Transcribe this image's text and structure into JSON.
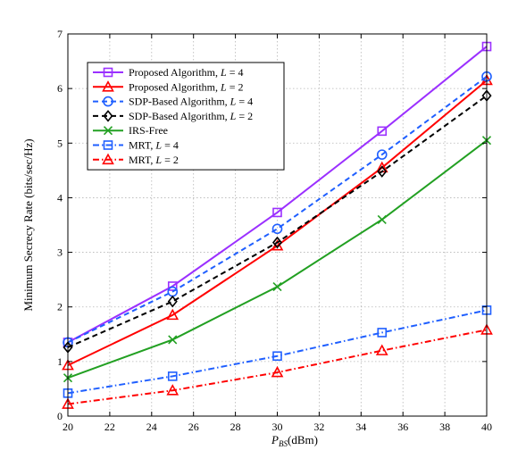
{
  "chart_data": {
    "type": "line",
    "title": "",
    "xlabel": "P_BS(dBm)",
    "xlabel_main": "P",
    "xlabel_sub": "BS",
    "xlabel_unit": "(dBm)",
    "ylabel": "Minimum Secrecy Rate (bits/sec/Hz)",
    "xlim": [
      20,
      40
    ],
    "ylim": [
      0,
      7
    ],
    "xticks": [
      20,
      22,
      24,
      26,
      28,
      30,
      32,
      34,
      36,
      38,
      40
    ],
    "yticks": [
      0,
      1,
      2,
      3,
      4,
      5,
      6,
      7
    ],
    "grid": true,
    "legend_position": "top-left",
    "x": [
      20,
      25,
      30,
      35,
      40
    ],
    "series": [
      {
        "name": "Proposed Algorithm, L = 4",
        "label_text": "Proposed Algorithm, ",
        "label_var": "L",
        "label_val": " = 4",
        "values": [
          1.35,
          2.38,
          3.73,
          5.22,
          6.77
        ],
        "color": "#9b30ff",
        "dash": "solid",
        "marker": "square"
      },
      {
        "name": "Proposed Algorithm, L = 2",
        "label_text": "Proposed Algorithm, ",
        "label_var": "L",
        "label_val": " = 2",
        "values": [
          0.93,
          1.85,
          3.12,
          4.55,
          6.15
        ],
        "color": "#ff0000",
        "dash": "solid",
        "marker": "triangle"
      },
      {
        "name": "SDP-Based Algorithm, L = 4",
        "label_text": "SDP-Based Algorithm, ",
        "label_var": "L",
        "label_val": " = 4",
        "values": [
          1.35,
          2.28,
          3.43,
          4.79,
          6.22
        ],
        "color": "#1f5fff",
        "dash": "dashed",
        "marker": "circle"
      },
      {
        "name": "SDP-Based Algorithm, L = 2",
        "label_text": "SDP-Based Algorithm, ",
        "label_var": "L",
        "label_val": " = 2",
        "values": [
          1.26,
          2.1,
          3.18,
          4.48,
          5.87
        ],
        "color": "#000000",
        "dash": "dashed",
        "marker": "diamond"
      },
      {
        "name": "IRS-Free",
        "label_text": "IRS-Free",
        "label_var": "",
        "label_val": "",
        "values": [
          0.7,
          1.4,
          2.37,
          3.6,
          5.05
        ],
        "color": "#22a022",
        "dash": "solid",
        "marker": "x"
      },
      {
        "name": "MRT, L = 4",
        "label_text": "MRT, ",
        "label_var": "L",
        "label_val": " = 4",
        "values": [
          0.42,
          0.73,
          1.1,
          1.53,
          1.94
        ],
        "color": "#1f5fff",
        "dash": "dashdot",
        "marker": "square"
      },
      {
        "name": "MRT, L = 2",
        "label_text": "MRT, ",
        "label_var": "L",
        "label_val": " = 2",
        "values": [
          0.22,
          0.47,
          0.8,
          1.2,
          1.58
        ],
        "color": "#ff0000",
        "dash": "dashdot",
        "marker": "triangle"
      }
    ]
  }
}
